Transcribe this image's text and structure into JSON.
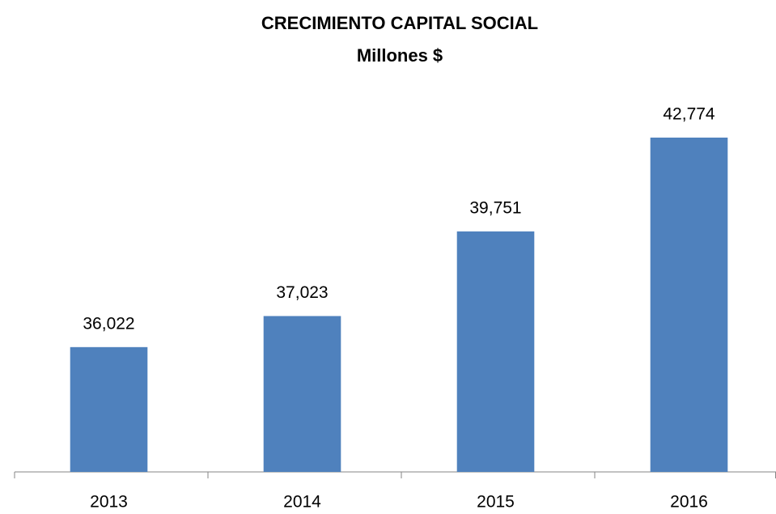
{
  "chart_data": {
    "type": "bar",
    "title": "CRECIMIENTO CAPITAL SOCIAL",
    "subtitle": "Millones $",
    "categories": [
      "2013",
      "2014",
      "2015",
      "2016"
    ],
    "values": [
      36022,
      37023,
      39751,
      42774
    ],
    "value_labels": [
      "36,022",
      "37,023",
      "39,751",
      "42,774"
    ],
    "color": "#4f81bd",
    "ylim": [
      32000,
      44000
    ]
  }
}
